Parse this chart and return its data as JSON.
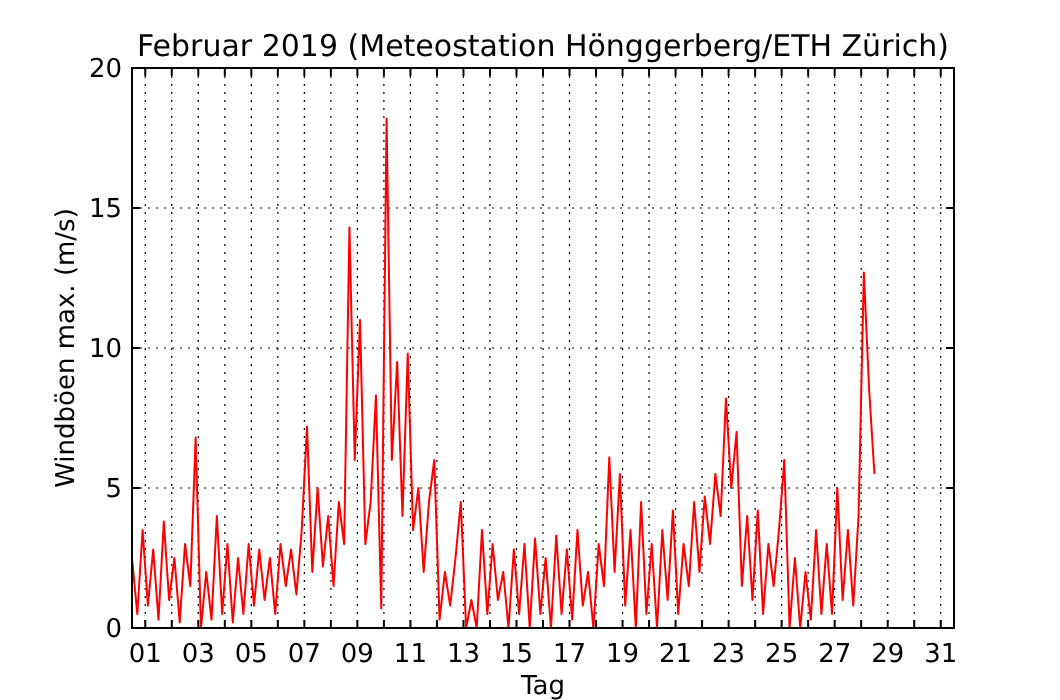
{
  "chart_data": {
    "type": "line",
    "title": "Februar 2019  (Meteostation Hönggerberg/ETH Zürich)",
    "xlabel": "Tag",
    "ylabel": "Windböen max. (m/s)",
    "xlim": [
      0.5,
      31.5
    ],
    "ylim": [
      0,
      20
    ],
    "xticks": [
      {
        "value": 1,
        "label": "01"
      },
      {
        "value": 2,
        "label": null
      },
      {
        "value": 3,
        "label": "03"
      },
      {
        "value": 4,
        "label": null
      },
      {
        "value": 5,
        "label": "05"
      },
      {
        "value": 6,
        "label": null
      },
      {
        "value": 7,
        "label": "07"
      },
      {
        "value": 8,
        "label": null
      },
      {
        "value": 9,
        "label": "09"
      },
      {
        "value": 10,
        "label": null
      },
      {
        "value": 11,
        "label": "11"
      },
      {
        "value": 12,
        "label": null
      },
      {
        "value": 13,
        "label": "13"
      },
      {
        "value": 14,
        "label": null
      },
      {
        "value": 15,
        "label": "15"
      },
      {
        "value": 16,
        "label": null
      },
      {
        "value": 17,
        "label": "17"
      },
      {
        "value": 18,
        "label": null
      },
      {
        "value": 19,
        "label": "19"
      },
      {
        "value": 20,
        "label": null
      },
      {
        "value": 21,
        "label": "21"
      },
      {
        "value": 22,
        "label": null
      },
      {
        "value": 23,
        "label": "23"
      },
      {
        "value": 24,
        "label": null
      },
      {
        "value": 25,
        "label": "25"
      },
      {
        "value": 26,
        "label": null
      },
      {
        "value": 27,
        "label": "27"
      },
      {
        "value": 28,
        "label": null
      },
      {
        "value": 29,
        "label": "29"
      },
      {
        "value": 30,
        "label": null
      },
      {
        "value": 31,
        "label": "31"
      }
    ],
    "yticks": [
      0,
      5,
      10,
      15,
      20
    ],
    "grid": true,
    "line_style": "solid",
    "marker": "none",
    "series": [
      {
        "color": "#ff0000",
        "x": [
          0.5,
          0.7,
          0.9,
          1.1,
          1.3,
          1.5,
          1.7,
          1.9,
          2.1,
          2.3,
          2.5,
          2.7,
          2.9,
          3.1,
          3.3,
          3.5,
          3.7,
          3.9,
          4.1,
          4.3,
          4.5,
          4.7,
          4.9,
          5.1,
          5.3,
          5.5,
          5.7,
          5.9,
          6.1,
          6.3,
          6.5,
          6.7,
          6.9,
          7.1,
          7.3,
          7.5,
          7.7,
          7.9,
          8.1,
          8.3,
          8.5,
          8.7,
          8.9,
          9.1,
          9.3,
          9.5,
          9.7,
          9.9,
          10.1,
          10.3,
          10.5,
          10.7,
          10.9,
          11.1,
          11.3,
          11.5,
          11.7,
          11.9,
          12.1,
          12.3,
          12.5,
          12.7,
          12.9,
          13.1,
          13.3,
          13.5,
          13.7,
          13.9,
          14.1,
          14.3,
          14.5,
          14.7,
          14.9,
          15.1,
          15.3,
          15.5,
          15.7,
          15.9,
          16.1,
          16.3,
          16.5,
          16.7,
          16.9,
          17.1,
          17.3,
          17.5,
          17.7,
          17.9,
          18.1,
          18.3,
          18.5,
          18.7,
          18.9,
          19.1,
          19.3,
          19.5,
          19.7,
          19.9,
          20.1,
          20.3,
          20.5,
          20.7,
          20.9,
          21.1,
          21.3,
          21.5,
          21.7,
          21.9,
          22.1,
          22.3,
          22.5,
          22.7,
          22.9,
          23.1,
          23.3,
          23.5,
          23.7,
          23.9,
          24.1,
          24.3,
          24.5,
          24.7,
          24.9,
          25.1,
          25.3,
          25.5,
          25.7,
          25.9,
          26.1,
          26.3,
          26.5,
          26.7,
          26.9,
          27.1,
          27.3,
          27.5,
          27.7,
          27.9,
          28.1,
          28.3,
          28.5
        ],
        "values": [
          2.5,
          0.5,
          3.5,
          0.8,
          2.8,
          0.3,
          3.8,
          1,
          2.5,
          0.2,
          3,
          1.5,
          6.8,
          0,
          2,
          0.3,
          4,
          0.5,
          3,
          0.2,
          2.5,
          0.5,
          3,
          0.8,
          2.8,
          1,
          2.5,
          0.5,
          3,
          1.5,
          2.8,
          1.2,
          3.5,
          7.2,
          2,
          5,
          2.2,
          4,
          1.5,
          4.5,
          3,
          14.3,
          6,
          11,
          3,
          4.5,
          8.3,
          0.7,
          18.2,
          6,
          9.5,
          4,
          9.8,
          3.5,
          5,
          2,
          4.5,
          6,
          0.3,
          2,
          0.8,
          2.5,
          4.5,
          0,
          1,
          0,
          3.5,
          0.5,
          3,
          1,
          2,
          0,
          2.8,
          0.5,
          3,
          0,
          3.2,
          0.5,
          2.5,
          0,
          3.3,
          0.5,
          2.8,
          0.3,
          3.5,
          0.8,
          2,
          0,
          3,
          1.5,
          6.1,
          2,
          5.5,
          0.8,
          3.5,
          0,
          4.5,
          0.5,
          3,
          0,
          3.5,
          1,
          4.2,
          0.5,
          3,
          1.5,
          4.5,
          2,
          4.7,
          3,
          5.5,
          4,
          8.2,
          5,
          7,
          1.5,
          4,
          1,
          4.2,
          0.5,
          3,
          1.5,
          3.5,
          6,
          0,
          2.5,
          0,
          2,
          0.3,
          3.5,
          0.5,
          3,
          0.5,
          5,
          1,
          3.5,
          0.8,
          4,
          12.7,
          8.5,
          5.5
        ]
      }
    ]
  }
}
